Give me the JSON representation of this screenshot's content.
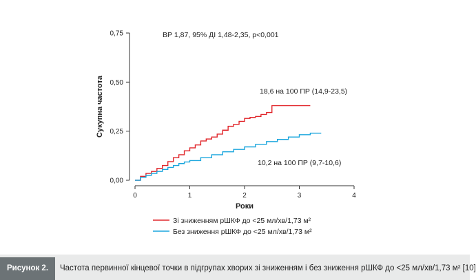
{
  "chart_data": {
    "type": "line",
    "xlabel": "Роки",
    "ylabel": "Сукупна частота",
    "xlim": [
      0,
      4
    ],
    "ylim": [
      0,
      0.75
    ],
    "x_ticks": [
      "0",
      "1",
      "2",
      "3",
      "4"
    ],
    "y_ticks": [
      "0,00",
      "0,25",
      "0,50",
      "0,75"
    ],
    "annotations": {
      "top": "ВР 1,87, 95% ДІ 1,48-2,35, p<0,001",
      "red": "18,6 на 100 ПР (14,9-23,5)",
      "blue": "10,2 на 100 ПР (9,7-10,6)"
    },
    "series": [
      {
        "name": "Зі зниженням рШКФ до <25 мл/хв/1,73 м²",
        "color": "#e1262b",
        "x": [
          0,
          0.1,
          0.2,
          0.3,
          0.4,
          0.5,
          0.6,
          0.7,
          0.8,
          0.9,
          1.0,
          1.1,
          1.2,
          1.3,
          1.4,
          1.5,
          1.6,
          1.7,
          1.8,
          1.9,
          2.0,
          2.1,
          2.2,
          2.3,
          2.4,
          2.5,
          2.6,
          2.7,
          2.8,
          2.9,
          3.0,
          3.2
        ],
        "values": [
          0.0,
          0.02,
          0.035,
          0.045,
          0.06,
          0.075,
          0.095,
          0.115,
          0.13,
          0.15,
          0.165,
          0.18,
          0.2,
          0.21,
          0.22,
          0.235,
          0.255,
          0.275,
          0.285,
          0.3,
          0.315,
          0.32,
          0.325,
          0.335,
          0.345,
          0.38,
          0.38,
          0.38,
          0.38,
          0.38,
          0.38,
          0.38
        ]
      },
      {
        "name": "Без зниження рШКФ до <25 мл/хв/1,73 м²",
        "color": "#1aa6dd",
        "x": [
          0,
          0.1,
          0.2,
          0.3,
          0.4,
          0.5,
          0.6,
          0.7,
          0.8,
          0.9,
          1.0,
          1.2,
          1.4,
          1.6,
          1.8,
          2.0,
          2.2,
          2.4,
          2.6,
          2.8,
          3.0,
          3.2,
          3.4
        ],
        "values": [
          0.0,
          0.015,
          0.025,
          0.035,
          0.045,
          0.055,
          0.065,
          0.075,
          0.085,
          0.093,
          0.1,
          0.115,
          0.13,
          0.145,
          0.157,
          0.17,
          0.183,
          0.197,
          0.208,
          0.22,
          0.232,
          0.24,
          0.24
        ]
      }
    ]
  },
  "caption": {
    "label": "Рисунок 2.",
    "text": "Частота первинної кінцевої точки в підгрупах хворих зі зниженням і без зниження рШКФ до <25 мл/хв/1,73 м² [10]"
  }
}
